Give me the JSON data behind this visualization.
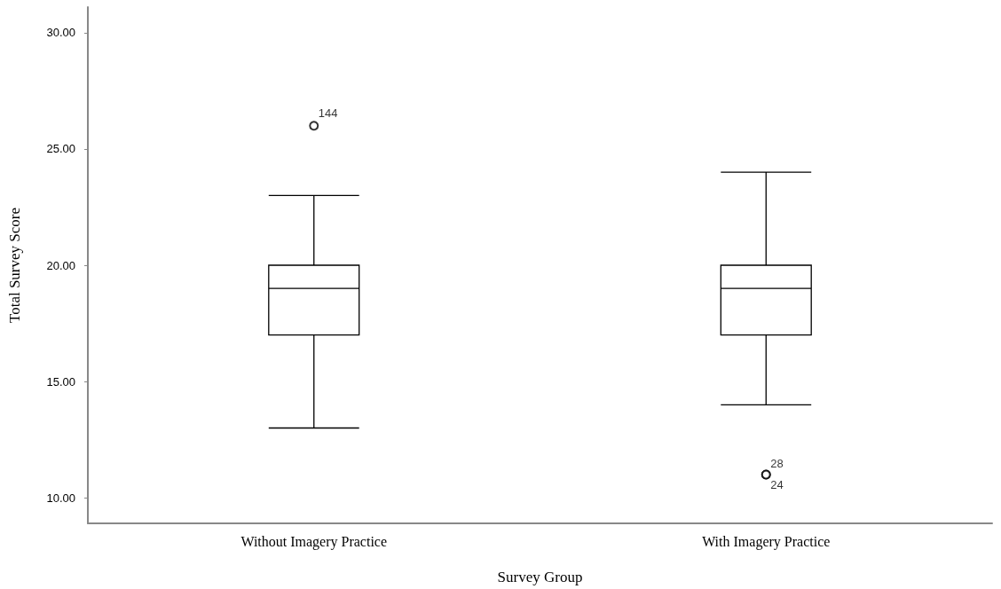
{
  "chart_data": {
    "type": "box",
    "xlabel": "Survey Group",
    "ylabel": "Total Survey Score",
    "categories": [
      "Without Imagery Practice",
      "With Imagery Practice"
    ],
    "boxes": [
      {
        "low": 13,
        "q1": 17,
        "median": 19,
        "q3": 20,
        "high": 23,
        "outliers": [
          26
        ]
      },
      {
        "low": 14,
        "q1": 17,
        "median": 19,
        "q3": 20,
        "high": 24,
        "outliers": [
          11,
          11
        ]
      }
    ],
    "ylim": [
      8.9,
      31.1
    ],
    "yticks": [
      {
        "value": 10,
        "label": "10.00"
      },
      {
        "value": 15,
        "label": "15.00"
      },
      {
        "value": 20,
        "label": "20.00"
      },
      {
        "value": 25,
        "label": "25.00"
      },
      {
        "value": 30,
        "label": "30.00"
      }
    ],
    "annotations": [
      "144",
      "28",
      "24"
    ],
    "grid": false,
    "color": "#000000"
  }
}
